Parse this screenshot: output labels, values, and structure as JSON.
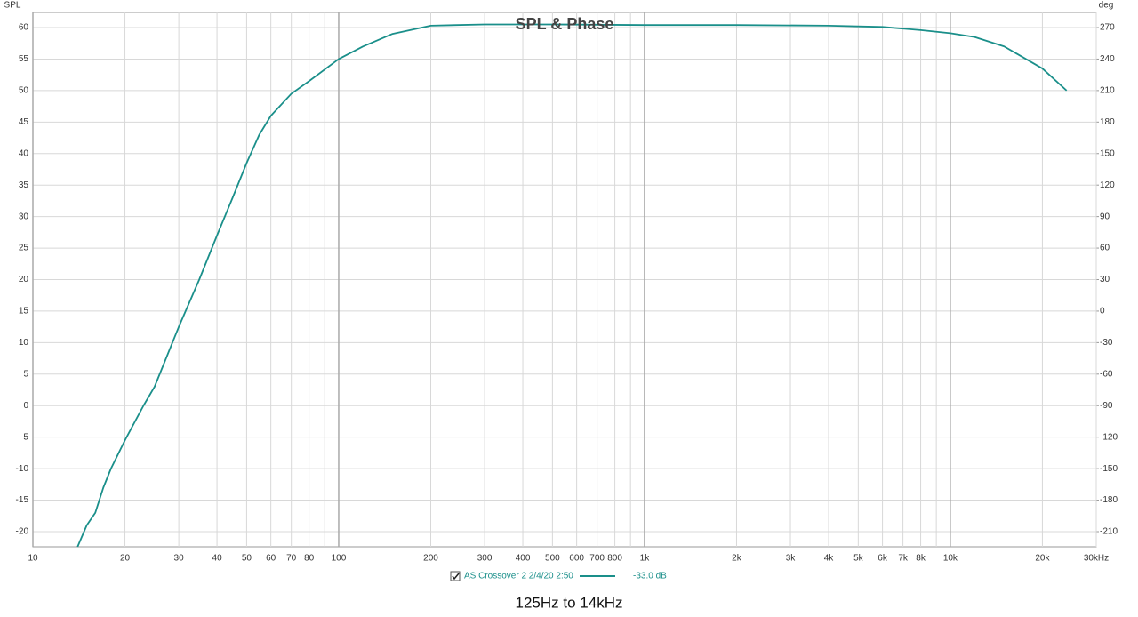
{
  "chart_data": {
    "type": "line",
    "title": "SPL & Phase",
    "ylabel": "SPL",
    "y2label": "deg",
    "caption": "125Hz to 14kHz",
    "xscale": "log",
    "grid": true,
    "xlim": [
      10,
      30000
    ],
    "xticks": [
      10,
      20,
      30,
      40,
      50,
      60,
      70,
      80,
      100,
      200,
      300,
      400,
      500,
      600,
      700,
      800,
      {
        "value": 1000,
        "label": "1k"
      },
      {
        "value": 2000,
        "label": "2k"
      },
      {
        "value": 3000,
        "label": "3k"
      },
      {
        "value": 4000,
        "label": "4k"
      },
      {
        "value": 5000,
        "label": "5k"
      },
      {
        "value": 6000,
        "label": "6k"
      },
      {
        "value": 7000,
        "label": "7k"
      },
      {
        "value": 8000,
        "label": "8k"
      },
      {
        "value": 10000,
        "label": "10k"
      },
      {
        "value": 20000,
        "label": "20k"
      },
      {
        "value": 30000,
        "label": "30kHz"
      }
    ],
    "xticks_minor": [
      90,
      900,
      9000
    ],
    "ylim": [
      -22.4,
      62.4
    ],
    "yticks": [
      -20,
      -15,
      -10,
      -5,
      0,
      5,
      10,
      15,
      20,
      25,
      30,
      35,
      40,
      45,
      50,
      55,
      60
    ],
    "y2lim": [
      -224.4,
      284.4
    ],
    "y2ticks": [
      -210,
      -180,
      -150,
      -120,
      -90,
      -60,
      -30,
      0,
      30,
      60,
      90,
      120,
      150,
      180,
      210,
      240,
      270
    ],
    "series": [
      {
        "name": "AS Crossover 2 2/4/20 2:50",
        "legend_value": "-33.0 dB",
        "color": "#1a8f8a",
        "x": [
          14,
          15,
          16,
          17,
          18,
          20,
          23,
          25,
          30,
          35,
          40,
          45,
          50,
          55,
          60,
          70,
          80,
          100,
          120,
          150,
          200,
          300,
          500,
          1000,
          2000,
          4000,
          6000,
          8000,
          10000,
          12000,
          15000,
          20000,
          24000
        ],
        "values": [
          -22.4,
          -19,
          -17,
          -13,
          -10,
          -5.5,
          0,
          3,
          12.5,
          20,
          27,
          33,
          38.5,
          43,
          46,
          49.5,
          51.5,
          55,
          57,
          59,
          60.3,
          60.5,
          60.5,
          60.4,
          60.4,
          60.3,
          60.1,
          59.6,
          59.1,
          58.5,
          57,
          53.5,
          50
        ]
      }
    ]
  }
}
